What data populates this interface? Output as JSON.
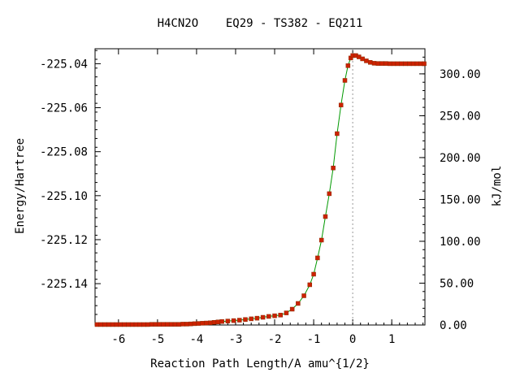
{
  "chart_data": {
    "type": "line",
    "title": "H4CN2O    EQ29 - TS382 - EQ211",
    "xlabel": "Reaction Path Length/A amu^{1/2}",
    "ylabel": "Energy/Hartree",
    "y2label": "kJ/mol",
    "xlim": [
      -6.6,
      1.85
    ],
    "ylim": [
      -225.1588,
      -225.0332
    ],
    "y2lim": [
      0,
      330
    ],
    "x_ticks": [
      -6,
      -5,
      -4,
      -3,
      -2,
      -1,
      0,
      1
    ],
    "x_tick_labels": [
      "-6",
      "-5",
      "-4",
      "-3",
      "-2",
      "-1",
      "0",
      "1"
    ],
    "y_ticks": [
      -225.04,
      -225.06,
      -225.08,
      -225.1,
      -225.12,
      -225.14
    ],
    "y_tick_labels": [
      "-225.04",
      "-225.06",
      "-225.08",
      "-225.10",
      "-225.12",
      "-225.14"
    ],
    "y2_ticks": [
      0,
      50,
      100,
      150,
      200,
      250,
      300
    ],
    "y2_tick_labels": [
      "0.00",
      "50.00",
      "100.00",
      "150.00",
      "200.00",
      "250.00",
      "300.00"
    ],
    "ts_marker_x": 0,
    "grid": false,
    "colors": {
      "line": "#009900",
      "marker": "#cc2200",
      "ts_line": "#999999"
    },
    "series": [
      {
        "x": [
          -6.55,
          -6.45,
          -6.35,
          -6.25,
          -6.15,
          -6.05,
          -5.95,
          -5.85,
          -5.75,
          -5.65,
          -5.55,
          -5.45,
          -5.35,
          -5.25,
          -5.15,
          -5.05,
          -4.95,
          -4.85,
          -4.75,
          -4.65,
          -4.55,
          -4.45,
          -4.35,
          -4.25,
          -4.15,
          -4.05,
          -3.95,
          -3.85,
          -3.75,
          -3.65,
          -3.55,
          -3.45,
          -3.35,
          -3.2,
          -3.05,
          -2.9,
          -2.75,
          -2.6,
          -2.45,
          -2.3,
          -2.15,
          -2.0,
          -1.85,
          -1.7,
          -1.55,
          -1.4,
          -1.25,
          -1.1,
          -1.0,
          -0.9,
          -0.8,
          -0.7,
          -0.6,
          -0.5,
          -0.4,
          -0.3,
          -0.2,
          -0.12,
          -0.05,
          0.0,
          0.08,
          0.16,
          0.25,
          0.35,
          0.45,
          0.55,
          0.65,
          0.75,
          0.85,
          0.95,
          1.05,
          1.15,
          1.25,
          1.35,
          1.45,
          1.55,
          1.65,
          1.75,
          1.83
        ],
        "y": [
          -225.1586,
          -225.1586,
          -225.1586,
          -225.1586,
          -225.1586,
          -225.1586,
          -225.1586,
          -225.1586,
          -225.1586,
          -225.1586,
          -225.1586,
          -225.1586,
          -225.1586,
          -225.1586,
          -225.1585,
          -225.1585,
          -225.1585,
          -225.1585,
          -225.1585,
          -225.1585,
          -225.1585,
          -225.1585,
          -225.1584,
          -225.1584,
          -225.1583,
          -225.1582,
          -225.1581,
          -225.158,
          -225.1579,
          -225.1578,
          -225.1576,
          -225.1574,
          -225.1572,
          -225.157,
          -225.1568,
          -225.1566,
          -225.1563,
          -225.156,
          -225.1557,
          -225.1553,
          -225.1549,
          -225.1546,
          -225.1543,
          -225.1533,
          -225.1516,
          -225.149,
          -225.1455,
          -225.1405,
          -225.1357,
          -225.1283,
          -225.1202,
          -225.1095,
          -225.0991,
          -225.0874,
          -225.0718,
          -225.0588,
          -225.0476,
          -225.0409,
          -225.0374,
          -225.0363,
          -225.0363,
          -225.0369,
          -225.0378,
          -225.0387,
          -225.0394,
          -225.0398,
          -225.0399,
          -225.0399,
          -225.0399,
          -225.04,
          -225.04,
          -225.04,
          -225.04,
          -225.04,
          -225.04,
          -225.04,
          -225.04,
          -225.04,
          -225.04
        ]
      }
    ]
  }
}
